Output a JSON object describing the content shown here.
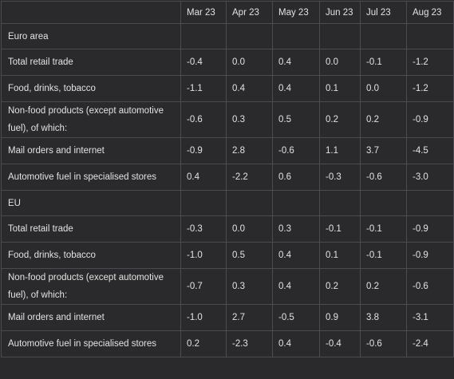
{
  "table": {
    "columns": [
      "",
      "Mar 23",
      "Apr 23",
      "May 23",
      "Jun 23",
      "Jul 23",
      "Aug 23"
    ],
    "rows": [
      {
        "type": "section",
        "label": "Euro area",
        "values": [
          "",
          "",
          "",
          "",
          "",
          ""
        ]
      },
      {
        "type": "single",
        "label": "Total retail trade",
        "values": [
          "-0.4",
          "0.0",
          "0.4",
          "0.0",
          "-0.1",
          "-1.2"
        ]
      },
      {
        "type": "single",
        "label": "Food, drinks, tobacco",
        "values": [
          "-1.1",
          "0.4",
          "0.4",
          "0.1",
          "0.0",
          "-1.2"
        ]
      },
      {
        "type": "double",
        "label": "Non-food products (except automotive fuel), of which:",
        "values": [
          "-0.6",
          "0.3",
          "0.5",
          "0.2",
          "0.2",
          "-0.9"
        ]
      },
      {
        "type": "single",
        "label": "Mail orders and internet",
        "values": [
          "-0.9",
          "2.8",
          "-0.6",
          "1.1",
          "3.7",
          "-4.5"
        ]
      },
      {
        "type": "single",
        "label": "Automotive fuel in specialised stores",
        "values": [
          "0.4",
          "-2.2",
          "0.6",
          "-0.3",
          "-0.6",
          "-3.0"
        ]
      },
      {
        "type": "section",
        "label": "EU",
        "values": [
          "",
          "",
          "",
          "",
          "",
          ""
        ]
      },
      {
        "type": "single",
        "label": "Total retail trade",
        "values": [
          "-0.3",
          "0.0",
          "0.3",
          "-0.1",
          "-0.1",
          "-0.9"
        ]
      },
      {
        "type": "single",
        "label": "Food, drinks, tobacco",
        "values": [
          "-1.0",
          "0.5",
          "0.4",
          "0.1",
          "-0.1",
          "-0.9"
        ]
      },
      {
        "type": "double",
        "label": "Non-food products (except automotive fuel), of which:",
        "values": [
          "-0.7",
          "0.3",
          "0.4",
          "0.2",
          "0.2",
          "-0.6"
        ]
      },
      {
        "type": "single",
        "label": "Mail orders and internet",
        "values": [
          "-1.0",
          "2.7",
          "-0.5",
          "0.9",
          "3.8",
          "-3.1"
        ]
      },
      {
        "type": "single",
        "label": "Automotive fuel in specialised stores",
        "values": [
          "0.2",
          "-2.3",
          "0.4",
          "-0.4",
          "-0.6",
          "-2.4"
        ]
      }
    ]
  }
}
